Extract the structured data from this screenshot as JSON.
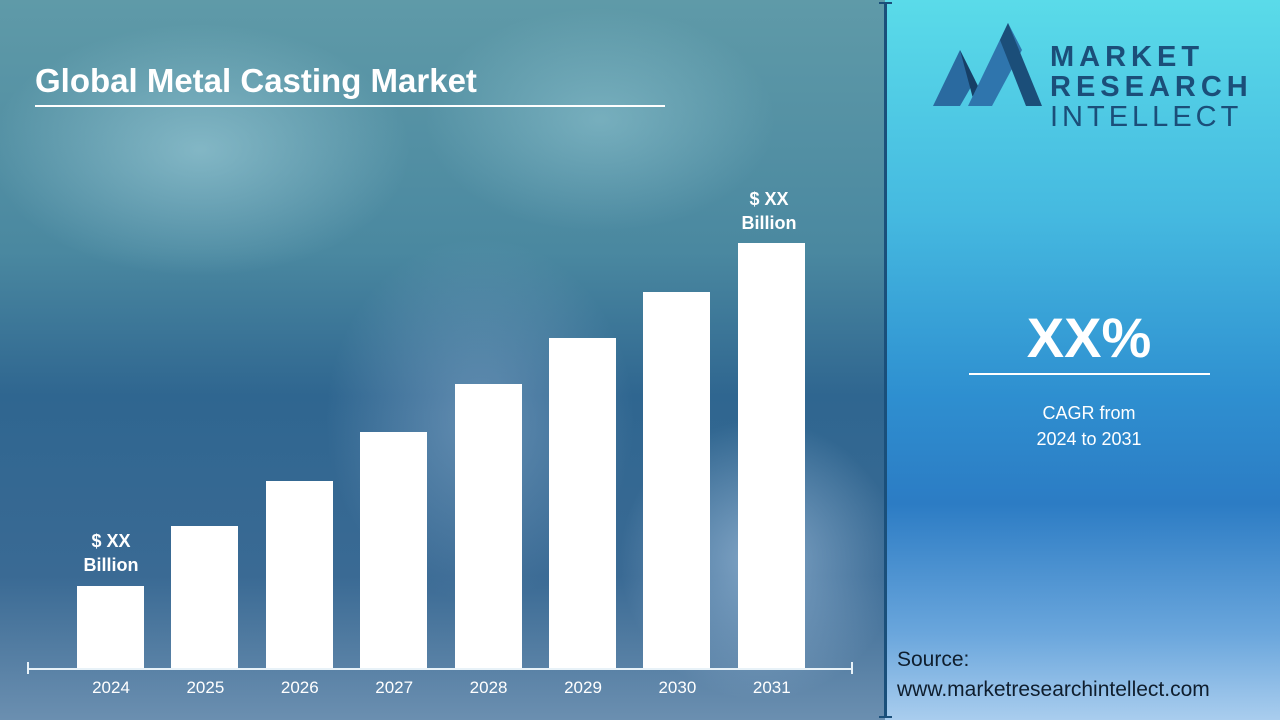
{
  "title": "Global Metal Casting Market",
  "logo": {
    "line1": "MARKET",
    "line2": "RESEARCH",
    "line3": "INTELLECT"
  },
  "cagr": {
    "value": "XX%",
    "line1": "CAGR from",
    "line2": "2024 to 2031"
  },
  "source": {
    "label": "Source:",
    "url": "www.marketresearchintellect.com"
  },
  "colors": {
    "bar": "#ffffff",
    "logo": "#1b4e79",
    "panel_top": "#5adbe9",
    "panel_mid": "#2c7cc4"
  },
  "chart_data": {
    "type": "bar",
    "title": "Global Metal Casting Market",
    "categories": [
      "2024",
      "2025",
      "2026",
      "2027",
      "2028",
      "2029",
      "2030",
      "2031"
    ],
    "values": [
      82,
      142,
      187,
      236,
      284,
      330,
      376,
      425
    ],
    "value_note": "relative bar heights; no value axis printed",
    "data_labels": {
      "first": {
        "line1": "$ XX",
        "line2": "Billion"
      },
      "last": {
        "line1": "$ XX",
        "line2": "Billion"
      }
    },
    "xlabel": "",
    "ylabel": "",
    "grid": false,
    "legend": "none"
  }
}
